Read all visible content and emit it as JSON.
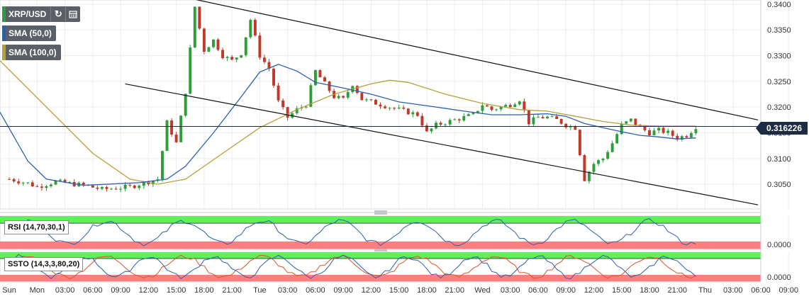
{
  "legend": {
    "symbol": "XRP/USD",
    "refresh_icon": "refresh-icon",
    "calendar_icon": "calendar-icon",
    "sma50_label": "SMA (50,0)",
    "sma100_label": "SMA (100,0)",
    "sma50_color": "#2a5fb0",
    "sma100_color": "#b5a13a"
  },
  "last_price": "0.316226",
  "indicators": {
    "rsi_label": "RSI (14,70,30,1)",
    "rsi_value": "0.0000",
    "ssto_label": "SSTO (14,3,3,80,20)",
    "ssto_value": "0.0000"
  },
  "colors": {
    "up": "#2e9d3a",
    "down": "#c0392b",
    "sma50": "#2a5fb0",
    "sma100": "#b5a13a",
    "zone_high": "#5ff05a",
    "zone_low": "#ff7f7f",
    "price_tag": "#1d2c45"
  },
  "chart_data": {
    "type": "candlestick",
    "y_ticks": [
      "0.3400",
      "0.3350",
      "0.3300",
      "0.3250",
      "0.3200",
      "0.3150",
      "0.3100",
      "0.3050"
    ],
    "ylim": [
      0.3002,
      0.3408
    ],
    "x_ticks": [
      "Sun",
      "Mon",
      "03:00",
      "06:00",
      "09:00",
      "12:00",
      "15:00",
      "18:00",
      "21:00",
      "Tue",
      "03:00",
      "06:00",
      "09:00",
      "12:00",
      "15:00",
      "18:00",
      "21:00",
      "Wed",
      "03:00",
      "06:00",
      "09:00",
      "12:00",
      "15:00",
      "18:00",
      "21:00",
      "Thu",
      "03:00",
      "06:00",
      "09:00"
    ],
    "x_range_hours": [
      -1,
      81
    ],
    "close_path": [
      [
        0,
        0.306
      ],
      [
        2,
        0.3052
      ],
      [
        3,
        0.3045
      ],
      [
        5,
        0.3055
      ],
      [
        8,
        0.3048
      ],
      [
        10,
        0.304
      ],
      [
        13,
        0.3045
      ],
      [
        15,
        0.3055
      ],
      [
        16,
        0.306
      ],
      [
        17,
        0.317
      ],
      [
        18,
        0.313
      ],
      [
        19,
        0.323
      ],
      [
        20,
        0.3395
      ],
      [
        21,
        0.331
      ],
      [
        22,
        0.333
      ],
      [
        23,
        0.33
      ],
      [
        24,
        0.329
      ],
      [
        25,
        0.3305
      ],
      [
        26,
        0.337
      ],
      [
        27,
        0.33
      ],
      [
        28,
        0.3275
      ],
      [
        29,
        0.321
      ],
      [
        30,
        0.318
      ],
      [
        31,
        0.3195
      ],
      [
        32,
        0.3205
      ],
      [
        33,
        0.327
      ],
      [
        34,
        0.3245
      ],
      [
        35,
        0.322
      ],
      [
        36,
        0.3215
      ],
      [
        37,
        0.3245
      ],
      [
        38,
        0.3215
      ],
      [
        39,
        0.321
      ],
      [
        40,
        0.3205
      ],
      [
        41,
        0.32
      ],
      [
        42,
        0.3195
      ],
      [
        43,
        0.319
      ],
      [
        44,
        0.3185
      ],
      [
        45,
        0.315
      ],
      [
        46,
        0.3165
      ],
      [
        47,
        0.317
      ],
      [
        48,
        0.3175
      ],
      [
        49,
        0.318
      ],
      [
        50,
        0.3185
      ],
      [
        51,
        0.3205
      ],
      [
        52,
        0.3195
      ],
      [
        53,
        0.32
      ],
      [
        54,
        0.3205
      ],
      [
        55,
        0.3215
      ],
      [
        56,
        0.317
      ],
      [
        57,
        0.318
      ],
      [
        58,
        0.318
      ],
      [
        59,
        0.3175
      ],
      [
        60,
        0.3165
      ],
      [
        61,
        0.316
      ],
      [
        62,
        0.306
      ],
      [
        63,
        0.309
      ],
      [
        64,
        0.31
      ],
      [
        65,
        0.313
      ],
      [
        66,
        0.3165
      ],
      [
        67,
        0.3175
      ],
      [
        68,
        0.316
      ],
      [
        69,
        0.315
      ],
      [
        70,
        0.3155
      ],
      [
        71,
        0.315
      ],
      [
        72,
        0.314
      ],
      [
        73,
        0.3145
      ],
      [
        74,
        0.3162
      ]
    ],
    "sma50": [
      [
        -1,
        0.319
      ],
      [
        2,
        0.3095
      ],
      [
        4,
        0.306
      ],
      [
        8,
        0.3048
      ],
      [
        14,
        0.3053
      ],
      [
        17,
        0.306
      ],
      [
        19,
        0.3085
      ],
      [
        22,
        0.315
      ],
      [
        25,
        0.322
      ],
      [
        27,
        0.3268
      ],
      [
        29,
        0.3283
      ],
      [
        31,
        0.327
      ],
      [
        33,
        0.3248
      ],
      [
        36,
        0.3237
      ],
      [
        39,
        0.3225
      ],
      [
        42,
        0.321
      ],
      [
        46,
        0.32
      ],
      [
        49,
        0.3192
      ],
      [
        52,
        0.3185
      ],
      [
        55,
        0.3185
      ],
      [
        58,
        0.3187
      ],
      [
        60,
        0.3182
      ],
      [
        62,
        0.3168
      ],
      [
        64,
        0.316
      ],
      [
        66,
        0.3152
      ],
      [
        68,
        0.3145
      ],
      [
        70,
        0.3142
      ],
      [
        72,
        0.3138
      ],
      [
        74,
        0.314
      ]
    ],
    "sma100": [
      [
        -1,
        0.329
      ],
      [
        4,
        0.32
      ],
      [
        9,
        0.311
      ],
      [
        13,
        0.306
      ],
      [
        16,
        0.305
      ],
      [
        19,
        0.306
      ],
      [
        23,
        0.311
      ],
      [
        27,
        0.316
      ],
      [
        31,
        0.3195
      ],
      [
        35,
        0.3225
      ],
      [
        39,
        0.3245
      ],
      [
        41,
        0.3252
      ],
      [
        43,
        0.3248
      ],
      [
        47,
        0.3225
      ],
      [
        51,
        0.3207
      ],
      [
        55,
        0.3195
      ],
      [
        58,
        0.3192
      ],
      [
        61,
        0.3182
      ],
      [
        64,
        0.3172
      ],
      [
        67,
        0.3165
      ],
      [
        70,
        0.3163
      ],
      [
        74,
        0.3163
      ]
    ],
    "trendlines": [
      {
        "from": [
          19.8,
          0.341
        ],
        "to": [
          80.7,
          0.3175
        ]
      },
      {
        "from": [
          12.5,
          0.3245
        ],
        "to": [
          80.7,
          0.301
        ]
      }
    ],
    "horizontal_line": 0.31623,
    "last_price": 0.316226
  }
}
